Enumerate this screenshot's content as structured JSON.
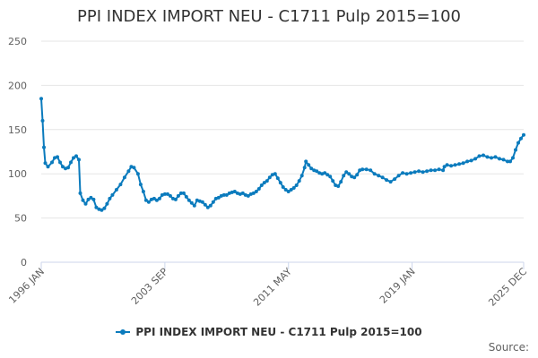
{
  "chart_data": {
    "type": "line",
    "title": "PPI INDEX IMPORT NEU - C1711 Pulp 2015=100",
    "xlabel": "",
    "ylabel": "",
    "ylim": [
      0,
      250
    ],
    "yticks": [
      0,
      50,
      100,
      150,
      200,
      250
    ],
    "x_range": [
      "1996-01",
      "2025-12"
    ],
    "xtick_labels": [
      {
        "label": "1996 JAN",
        "date": "1996-01"
      },
      {
        "label": "2003 SEP",
        "date": "2003-09"
      },
      {
        "label": "2011 MAY",
        "date": "2011-05"
      },
      {
        "label": "2019 JAN",
        "date": "2019-01"
      },
      {
        "label": "2025 DEC",
        "date": "2025-12"
      }
    ],
    "grid": "horizontal",
    "legend_position": "bottom",
    "color": "#0b7bbd",
    "series": [
      {
        "name": "PPI INDEX IMPORT NEU - C1711 Pulp 2015=100",
        "points": [
          [
            "1996-01",
            185
          ],
          [
            "1996-02",
            160
          ],
          [
            "1996-03",
            130
          ],
          [
            "1996-04",
            112
          ],
          [
            "1996-06",
            108
          ],
          [
            "1996-09",
            113
          ],
          [
            "1996-11",
            118
          ],
          [
            "1997-01",
            119
          ],
          [
            "1997-03",
            113
          ],
          [
            "1997-05",
            108
          ],
          [
            "1997-07",
            106
          ],
          [
            "1997-09",
            107
          ],
          [
            "1997-11",
            113
          ],
          [
            "1998-01",
            118
          ],
          [
            "1998-03",
            120
          ],
          [
            "1998-05",
            116
          ],
          [
            "1998-06",
            78
          ],
          [
            "1998-08",
            70
          ],
          [
            "1998-10",
            66
          ],
          [
            "1998-12",
            71
          ],
          [
            "1999-02",
            73
          ],
          [
            "1999-04",
            71
          ],
          [
            "1999-06",
            62
          ],
          [
            "1999-08",
            60
          ],
          [
            "1999-10",
            59
          ],
          [
            "1999-12",
            61
          ],
          [
            "2000-02",
            66
          ],
          [
            "2000-04",
            72
          ],
          [
            "2000-06",
            76
          ],
          [
            "2000-09",
            82
          ],
          [
            "2000-12",
            88
          ],
          [
            "2001-03",
            96
          ],
          [
            "2001-06",
            103
          ],
          [
            "2001-08",
            108
          ],
          [
            "2001-10",
            107
          ],
          [
            "2002-01",
            100
          ],
          [
            "2002-03",
            88
          ],
          [
            "2002-05",
            80
          ],
          [
            "2002-07",
            70
          ],
          [
            "2002-09",
            68
          ],
          [
            "2002-11",
            71
          ],
          [
            "2003-01",
            72
          ],
          [
            "2003-03",
            70
          ],
          [
            "2003-05",
            72
          ],
          [
            "2003-07",
            76
          ],
          [
            "2003-09",
            77
          ],
          [
            "2003-11",
            77
          ],
          [
            "2004-01",
            75
          ],
          [
            "2004-03",
            72
          ],
          [
            "2004-05",
            71
          ],
          [
            "2004-07",
            75
          ],
          [
            "2004-09",
            78
          ],
          [
            "2004-11",
            78
          ],
          [
            "2005-01",
            74
          ],
          [
            "2005-03",
            70
          ],
          [
            "2005-05",
            67
          ],
          [
            "2005-07",
            64
          ],
          [
            "2005-09",
            70
          ],
          [
            "2005-11",
            69
          ],
          [
            "2006-01",
            68
          ],
          [
            "2006-03",
            65
          ],
          [
            "2006-05",
            62
          ],
          [
            "2006-07",
            64
          ],
          [
            "2006-09",
            68
          ],
          [
            "2006-11",
            72
          ],
          [
            "2007-01",
            73
          ],
          [
            "2007-03",
            75
          ],
          [
            "2007-05",
            76
          ],
          [
            "2007-07",
            76
          ],
          [
            "2007-09",
            78
          ],
          [
            "2007-11",
            79
          ],
          [
            "2008-01",
            80
          ],
          [
            "2008-03",
            78
          ],
          [
            "2008-05",
            77
          ],
          [
            "2008-07",
            78
          ],
          [
            "2008-09",
            76
          ],
          [
            "2008-11",
            75
          ],
          [
            "2009-01",
            77
          ],
          [
            "2009-03",
            78
          ],
          [
            "2009-05",
            80
          ],
          [
            "2009-07",
            83
          ],
          [
            "2009-09",
            87
          ],
          [
            "2009-11",
            90
          ],
          [
            "2010-01",
            92
          ],
          [
            "2010-03",
            96
          ],
          [
            "2010-05",
            99
          ],
          [
            "2010-07",
            100
          ],
          [
            "2010-09",
            95
          ],
          [
            "2010-11",
            90
          ],
          [
            "2011-01",
            85
          ],
          [
            "2011-03",
            82
          ],
          [
            "2011-05",
            80
          ],
          [
            "2011-07",
            82
          ],
          [
            "2011-09",
            84
          ],
          [
            "2011-11",
            87
          ],
          [
            "2012-01",
            92
          ],
          [
            "2012-03",
            98
          ],
          [
            "2012-05",
            107
          ],
          [
            "2012-06",
            114
          ],
          [
            "2012-08",
            110
          ],
          [
            "2012-10",
            106
          ],
          [
            "2012-12",
            104
          ],
          [
            "2013-02",
            103
          ],
          [
            "2013-04",
            101
          ],
          [
            "2013-06",
            100
          ],
          [
            "2013-08",
            101
          ],
          [
            "2013-10",
            99
          ],
          [
            "2013-12",
            97
          ],
          [
            "2014-02",
            92
          ],
          [
            "2014-04",
            87
          ],
          [
            "2014-06",
            86
          ],
          [
            "2014-08",
            91
          ],
          [
            "2014-10",
            98
          ],
          [
            "2014-12",
            102
          ],
          [
            "2015-02",
            100
          ],
          [
            "2015-04",
            97
          ],
          [
            "2015-06",
            96
          ],
          [
            "2015-08",
            99
          ],
          [
            "2015-10",
            104
          ],
          [
            "2015-12",
            105
          ],
          [
            "2016-03",
            105
          ],
          [
            "2016-06",
            104
          ],
          [
            "2016-09",
            100
          ],
          [
            "2016-12",
            98
          ],
          [
            "2017-03",
            96
          ],
          [
            "2017-06",
            93
          ],
          [
            "2017-09",
            91
          ],
          [
            "2017-12",
            94
          ],
          [
            "2018-03",
            98
          ],
          [
            "2018-06",
            101
          ],
          [
            "2018-09",
            100
          ],
          [
            "2018-12",
            101
          ],
          [
            "2019-03",
            102
          ],
          [
            "2019-06",
            103
          ],
          [
            "2019-09",
            102
          ],
          [
            "2019-12",
            103
          ],
          [
            "2020-03",
            104
          ],
          [
            "2020-06",
            104
          ],
          [
            "2020-09",
            105
          ],
          [
            "2020-12",
            104
          ],
          [
            "2021-01",
            108
          ],
          [
            "2021-03",
            110
          ],
          [
            "2021-06",
            109
          ],
          [
            "2021-09",
            110
          ],
          [
            "2021-12",
            111
          ],
          [
            "2022-03",
            112
          ],
          [
            "2022-06",
            114
          ],
          [
            "2022-09",
            115
          ],
          [
            "2022-12",
            117
          ],
          [
            "2023-03",
            120
          ],
          [
            "2023-06",
            121
          ],
          [
            "2023-09",
            119
          ],
          [
            "2023-12",
            118
          ],
          [
            "2024-03",
            119
          ],
          [
            "2024-06",
            117
          ],
          [
            "2024-09",
            116
          ],
          [
            "2024-12",
            114
          ],
          [
            "2025-02",
            114
          ],
          [
            "2025-04",
            118
          ],
          [
            "2025-06",
            127
          ],
          [
            "2025-08",
            135
          ],
          [
            "2025-10",
            140
          ],
          [
            "2025-12",
            144
          ]
        ]
      }
    ]
  },
  "legend_label": "PPI INDEX IMPORT NEU - C1711 Pulp 2015=100",
  "credit": "Source:"
}
